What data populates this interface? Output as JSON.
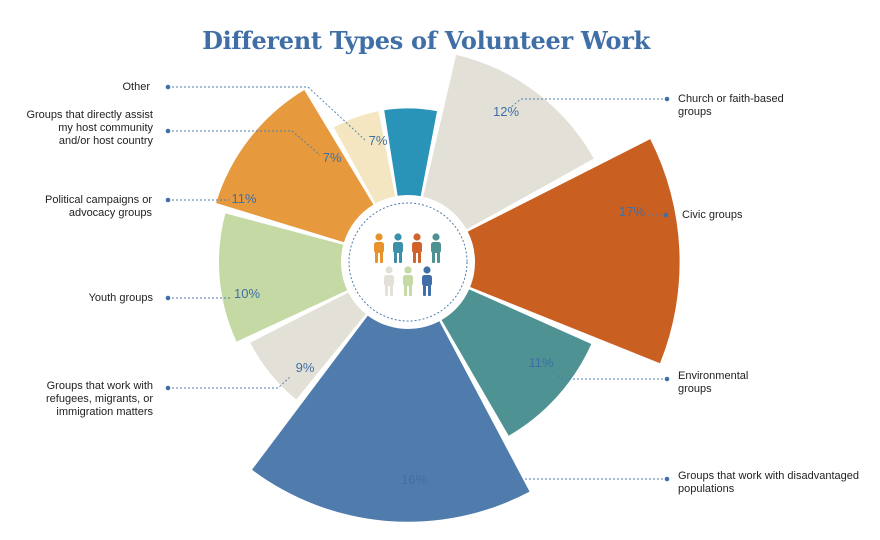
{
  "chart_data": {
    "type": "pie",
    "variant": "radial-rose",
    "title": "Different Types of Volunteer Work",
    "slices": [
      {
        "label": "Church or faith-based groups",
        "value": 12,
        "value_label": "12%",
        "color": "#e3e1d7"
      },
      {
        "label": "Civic groups",
        "value": 17,
        "value_label": "17%",
        "color": "#c95f21"
      },
      {
        "label": "Environmental groups",
        "value": 11,
        "value_label": "11%",
        "color": "#4e9293"
      },
      {
        "label": "Groups that work with disadvantaged populations",
        "value": 16,
        "value_label": "16%",
        "color": "#4f7cac"
      },
      {
        "label": "Groups that work with refugees, migrants, or immigration matters",
        "value": 9,
        "value_label": "9%",
        "color": "#e3e1d7"
      },
      {
        "label": "Youth groups",
        "value": 10,
        "value_label": "10%",
        "color": "#c5d9a4"
      },
      {
        "label": "Political campaigns or advocacy groups",
        "value": 11,
        "value_label": "11%",
        "color": "#e7993e"
      },
      {
        "label": "Groups that directly assist my host community and/or host country",
        "value": 7,
        "value_label": "7%",
        "color": "#f3e6c1"
      },
      {
        "label": "Other",
        "value": 7,
        "value_label": "7%",
        "color": "#2a93b8"
      }
    ],
    "legend": "none",
    "center_icon": "people-icon"
  },
  "icon_colors": [
    "#e8922e",
    "#3b8fa9",
    "#d0632a",
    "#4e9293",
    "#e3e1d7",
    "#c5d9a4",
    "#3f6fa6"
  ]
}
